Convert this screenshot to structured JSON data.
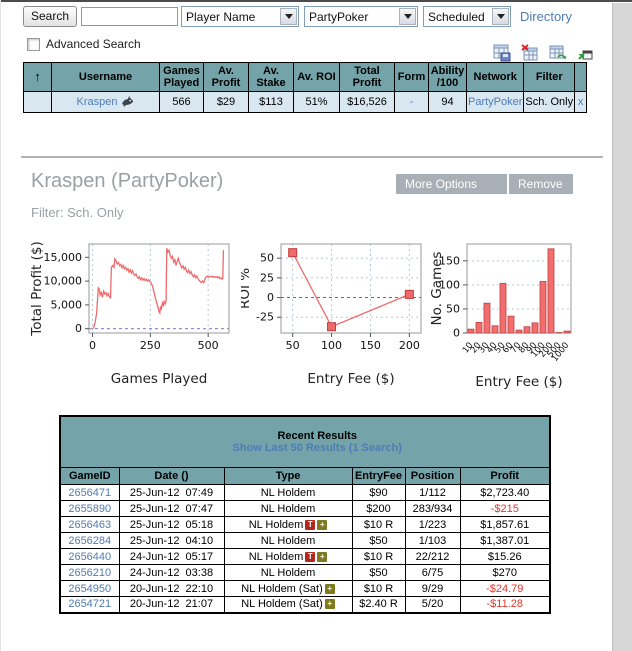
{
  "topbar": {
    "search_button": "Search",
    "search_input_value": "",
    "category_select": "Player Name",
    "network_select": "PartyPoker",
    "schedule_select": "Scheduled",
    "directory_link": "Directory",
    "advanced_search_label": "Advanced Search"
  },
  "toolbar": {
    "icons": [
      "save-table",
      "export-table",
      "refresh-table",
      "popout"
    ]
  },
  "results_table": {
    "sort_icon": "↑",
    "headers": [
      "Username",
      "Games\nPlayed",
      "Av.\nProfit",
      "Av.\nStake",
      "Av. ROI",
      "Total\nProfit",
      "Form",
      "Ability\n/100",
      "Network",
      "Filter"
    ],
    "row": {
      "username": "Kraspen",
      "games": "566",
      "av_profit": "$29",
      "av_stake": "$113",
      "av_roi": "51%",
      "total_profit": "$16,526",
      "form": "-",
      "ability": "94",
      "network": "PartyPoker",
      "filter": "Sch. Only",
      "close": "x"
    }
  },
  "player": {
    "title": "Kraspen (PartyPoker)",
    "more_options": "More Options",
    "remove": "Remove",
    "filter_label": "Filter: Sch. Only"
  },
  "chart_data": [
    {
      "type": "line",
      "xlabel": "Games Played",
      "ylabel": "Total Profit ($)",
      "xlim": [
        -15,
        590
      ],
      "ylim": [
        -900,
        17800
      ],
      "xticks": [
        0,
        250,
        500
      ],
      "yticks": [
        0,
        5000,
        10000,
        15000
      ],
      "ytick_labels": [
        "0",
        "5,000",
        "10,000",
        "15,000"
      ],
      "zero_line": true,
      "vgrid": true,
      "hgrid": false,
      "line_color": "#ee6b6b",
      "points": [
        [
          0,
          0
        ],
        [
          5,
          200
        ],
        [
          12,
          1500
        ],
        [
          18,
          3200
        ],
        [
          25,
          8600
        ],
        [
          30,
          8300
        ],
        [
          33,
          7100
        ],
        [
          38,
          7600
        ],
        [
          43,
          6600
        ],
        [
          48,
          7900
        ],
        [
          53,
          7300
        ],
        [
          58,
          7600
        ],
        [
          63,
          6900
        ],
        [
          68,
          7400
        ],
        [
          73,
          6700
        ],
        [
          78,
          6500
        ],
        [
          82,
          12900
        ],
        [
          88,
          13300
        ],
        [
          93,
          12900
        ],
        [
          97,
          14700
        ],
        [
          102,
          14300
        ],
        [
          107,
          13600
        ],
        [
          112,
          13900
        ],
        [
          118,
          13200
        ],
        [
          123,
          13500
        ],
        [
          128,
          12800
        ],
        [
          133,
          13300
        ],
        [
          138,
          12600
        ],
        [
          143,
          12900
        ],
        [
          148,
          12300
        ],
        [
          153,
          12600
        ],
        [
          158,
          11900
        ],
        [
          163,
          12400
        ],
        [
          168,
          11700
        ],
        [
          173,
          12200
        ],
        [
          178,
          11500
        ],
        [
          183,
          11200
        ],
        [
          188,
          11500
        ],
        [
          193,
          10900
        ],
        [
          198,
          10600
        ],
        [
          203,
          10900
        ],
        [
          208,
          10300
        ],
        [
          213,
          10700
        ],
        [
          218,
          10200
        ],
        [
          223,
          10500
        ],
        [
          228,
          10100
        ],
        [
          233,
          10400
        ],
        [
          238,
          10000
        ],
        [
          243,
          10300
        ],
        [
          248,
          9900
        ],
        [
          253,
          9700
        ],
        [
          258,
          9100
        ],
        [
          263,
          8300
        ],
        [
          268,
          7300
        ],
        [
          273,
          6300
        ],
        [
          278,
          5300
        ],
        [
          283,
          4500
        ],
        [
          288,
          3600
        ],
        [
          291,
          3300
        ],
        [
          294,
          4700
        ],
        [
          298,
          4200
        ],
        [
          302,
          5400
        ],
        [
          306,
          4900
        ],
        [
          310,
          5700
        ],
        [
          314,
          5200
        ],
        [
          318,
          5800
        ],
        [
          321,
          16900
        ],
        [
          326,
          16100
        ],
        [
          331,
          16500
        ],
        [
          336,
          15400
        ],
        [
          341,
          14800
        ],
        [
          346,
          15200
        ],
        [
          351,
          14000
        ],
        [
          356,
          14500
        ],
        [
          361,
          13300
        ],
        [
          366,
          14100
        ],
        [
          371,
          14800
        ],
        [
          376,
          13900
        ],
        [
          381,
          13400
        ],
        [
          386,
          12800
        ],
        [
          391,
          13200
        ],
        [
          396,
          12500
        ],
        [
          401,
          12900
        ],
        [
          406,
          12200
        ],
        [
          411,
          11800
        ],
        [
          416,
          12300
        ],
        [
          421,
          11600
        ],
        [
          426,
          12000
        ],
        [
          431,
          11300
        ],
        [
          436,
          10900
        ],
        [
          441,
          11300
        ],
        [
          446,
          10700
        ],
        [
          451,
          11100
        ],
        [
          456,
          10500
        ],
        [
          461,
          10200
        ],
        [
          466,
          9900
        ],
        [
          471,
          9700
        ],
        [
          476,
          10000
        ],
        [
          481,
          9700
        ],
        [
          486,
          10400
        ],
        [
          491,
          10900
        ],
        [
          496,
          11000
        ],
        [
          501,
          10800
        ],
        [
          506,
          11000
        ],
        [
          511,
          10900
        ],
        [
          516,
          11000
        ],
        [
          521,
          10800
        ],
        [
          526,
          11000
        ],
        [
          531,
          10800
        ],
        [
          536,
          10900
        ],
        [
          541,
          10700
        ],
        [
          546,
          10900
        ],
        [
          551,
          10500
        ],
        [
          556,
          10700
        ],
        [
          560,
          10400
        ],
        [
          563,
          10600
        ],
        [
          566,
          16500
        ]
      ]
    },
    {
      "type": "line",
      "xlabel": "Entry Fee ($)",
      "ylabel": "ROI %",
      "xlim": [
        35,
        215
      ],
      "ylim": [
        -45,
        68
      ],
      "xticks": [
        50,
        100,
        150,
        200
      ],
      "yticks": [
        -25,
        0,
        25,
        50
      ],
      "ytick_labels": [
        "-25",
        "0",
        "25",
        "50"
      ],
      "zero_line": true,
      "vgrid": true,
      "hgrid": true,
      "markers": "square",
      "line_color": "#ee6b6b",
      "points": [
        [
          50,
          57
        ],
        [
          100,
          -37
        ],
        [
          200,
          4
        ]
      ]
    },
    {
      "type": "bar",
      "xlabel": "Entry Fee ($)",
      "ylabel": "No. Games",
      "ylim": [
        0,
        185
      ],
      "yticks": [
        0,
        50,
        100,
        150
      ],
      "ytick_labels": [
        "0",
        "50",
        "100",
        "150"
      ],
      "hgrid": true,
      "bar_color": "#f26d6d",
      "categories": [
        "10",
        "20",
        "30",
        "40",
        "50",
        "60",
        "70",
        "80",
        "90",
        "100",
        "200",
        "500",
        "1000"
      ],
      "values": [
        8,
        22,
        62,
        15,
        103,
        35,
        6,
        13,
        21,
        107,
        175,
        1,
        4
      ]
    }
  ],
  "recent_results": {
    "title": "Recent Results",
    "link": "Show Last 50 Results (1 Search)",
    "headers": [
      "GameID",
      "Date ()",
      "Type",
      "EntryFee",
      "Position",
      "Profit"
    ],
    "rows": [
      {
        "id": "2656471",
        "date": "25-Jun-12  07:49",
        "type": "NL Holdem",
        "badges": [],
        "fee": "$90",
        "position": "1/112",
        "profit": "$2,723.40",
        "negative": false
      },
      {
        "id": "2655890",
        "date": "25-Jun-12  07:47",
        "type": "NL Holdem",
        "badges": [],
        "fee": "$200",
        "position": "283/934",
        "profit": "-$215",
        "negative": true
      },
      {
        "id": "2656463",
        "date": "25-Jun-12  05:18",
        "type": "NL Holdem",
        "badges": [
          "T",
          "+"
        ],
        "fee": "$10 R",
        "position": "1/223",
        "profit": "$1,857.61",
        "negative": false
      },
      {
        "id": "2656284",
        "date": "25-Jun-12  04:10",
        "type": "NL Holdem",
        "badges": [],
        "fee": "$50",
        "position": "1/103",
        "profit": "$1,387.01",
        "negative": false
      },
      {
        "id": "2656440",
        "date": "24-Jun-12  05:17",
        "type": "NL Holdem",
        "badges": [
          "T",
          "+"
        ],
        "fee": "$10 R",
        "position": "22/212",
        "profit": "$15.26",
        "negative": false
      },
      {
        "id": "2656210",
        "date": "24-Jun-12  03:38",
        "type": "NL Holdem",
        "badges": [],
        "fee": "$50",
        "position": "6/75",
        "profit": "$270",
        "negative": false
      },
      {
        "id": "2654950",
        "date": "20-Jun-12  22:10",
        "type": "NL Holdem (Sat)",
        "badges": [
          "+"
        ],
        "fee": "$10 R",
        "position": "9/29",
        "profit": "-$24.79",
        "negative": true
      },
      {
        "id": "2654721",
        "date": "20-Jun-12  21:07",
        "type": "NL Holdem (Sat)",
        "badges": [
          "+"
        ],
        "fee": "$2.40 R",
        "position": "5/20",
        "profit": "-$11.28",
        "negative": true
      }
    ]
  },
  "colors": {
    "header_teal": "#74a4a9",
    "row_highlight": "#d8e7f0",
    "link_blue": "#4e7cb5",
    "negative_red": "#e8332a",
    "chart_line": "#ee6b6b",
    "grid_blue": "#b9c8e0",
    "zero_line_blue": "#4a4ab8",
    "title_gray": "#9aa0a4",
    "button_gray": "#a9afb6"
  }
}
